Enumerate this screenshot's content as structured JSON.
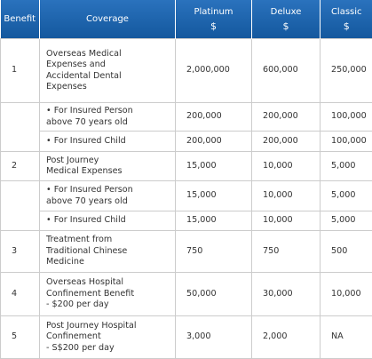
{
  "table": {
    "header": [
      "Benefit",
      "Coverage",
      "Platinum",
      "Deluxe",
      "Classic"
    ],
    "currency": [
      "$",
      "$",
      "$"
    ],
    "groups": [
      {
        "benefit": "1",
        "rows": [
          [
            "Overseas Medical\nExpenses and\nAccidental Dental\nExpenses",
            "2,000,000",
            "600,000",
            "250,000"
          ]
        ]
      },
      {
        "rows": [
          [
            "• For Insured Person\nabove 70 years old",
            "200,000",
            "200,000",
            "100,000"
          ],
          [
            "• For Insured Child",
            "200,000",
            "200,000",
            "100,000"
          ]
        ]
      },
      {
        "benefit": "2",
        "rows": [
          [
            "Post Journey\nMedical Expenses",
            "15,000",
            "10,000",
            "5,000"
          ]
        ]
      },
      {
        "rows": [
          [
            "• For Insured Person\nabove 70 years old",
            "15,000",
            "10,000",
            "5,000"
          ],
          [
            "• For Insured Child",
            "15,000",
            "10,000",
            "5,000"
          ]
        ]
      },
      {
        "benefit": "3",
        "rows": [
          [
            "Treatment from\nTraditional Chinese\nMedicine",
            "750",
            "750",
            "500"
          ]
        ]
      },
      {
        "benefit": "4",
        "rows": [
          [
            "Overseas Hospital\nConfinement Benefit\n- $200 per day",
            "50,000",
            "30,000",
            "10,000"
          ]
        ]
      },
      {
        "benefit": "5",
        "rows": [
          [
            "Post Journey Hospital\nConfinement\n- S$200 per day",
            "3,000",
            "2,000",
            "NA"
          ]
        ]
      }
    ]
  }
}
